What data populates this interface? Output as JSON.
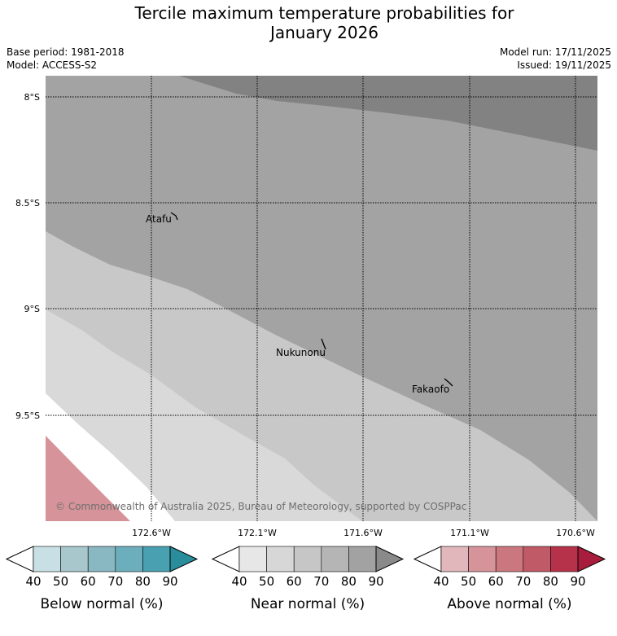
{
  "title": {
    "line1": "Tercile maximum temperature probabilities for",
    "line2": "January 2026"
  },
  "meta": {
    "base_period": "Base period: 1981-2018",
    "model": "Model: ACCESS-S2",
    "model_run": "Model run: 17/11/2025",
    "issued": "Issued: 19/11/2025"
  },
  "map": {
    "lat_ticks": [
      "8°S",
      "8.5°S",
      "9°S",
      "9.5°S"
    ],
    "lon_ticks": [
      "172.6°W",
      "172.1°W",
      "171.6°W",
      "171.1°W",
      "170.6°W"
    ],
    "places": [
      "Atafu",
      "Nukunonu",
      "Fakaofo"
    ],
    "copyright": "© Commonwealth of Australia 2025, Bureau of Meteorology, supported by COSPPac"
  },
  "colorbars": [
    {
      "label": "Below normal (%)",
      "ticks": [
        "40",
        "50",
        "60",
        "70",
        "80",
        "90"
      ],
      "colors": [
        "#c8e0e5",
        "#a7c7cc",
        "#89b7c2",
        "#6caebb",
        "#48a0b0",
        "#2a8d9c"
      ]
    },
    {
      "label": "Near normal (%)",
      "ticks": [
        "40",
        "50",
        "60",
        "70",
        "80",
        "90"
      ],
      "colors": [
        "#e7e7e7",
        "#d7d7d7",
        "#c6c6c6",
        "#b5b5b5",
        "#a2a2a2",
        "#8a8a8a"
      ]
    },
    {
      "label": "Above normal (%)",
      "ticks": [
        "40",
        "50",
        "60",
        "70",
        "80",
        "90"
      ],
      "colors": [
        "#e2b7bc",
        "#d6949a",
        "#cb7780",
        "#c05a66",
        "#b5324a",
        "#a81d3c"
      ]
    }
  ]
}
